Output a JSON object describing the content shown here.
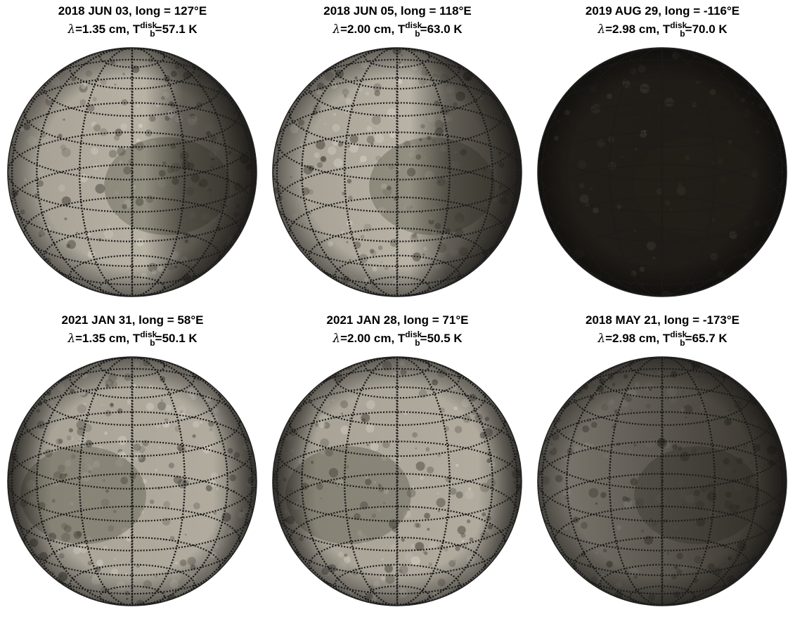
{
  "panels": [
    {
      "date": "2018 JUN 03",
      "long_text": "long = 127°E",
      "wavelength": "=1.35 cm",
      "tb_value": "=57.1 K",
      "brightness": 0.8,
      "dark_side": "right"
    },
    {
      "date": "2018 JUN 05",
      "long_text": "long = 118°E",
      "wavelength": "=2.00 cm",
      "tb_value": "=63.0 K",
      "brightness": 0.78,
      "dark_side": "right"
    },
    {
      "date": "2019 AUG 29",
      "long_text": "long = -116°E",
      "wavelength": "=2.98 cm",
      "tb_value": "=70.0 K",
      "brightness": 0.18,
      "dark_side": "all"
    },
    {
      "date": "2021 JAN 31",
      "long_text": "long = 58°E",
      "wavelength": "=1.35 cm",
      "tb_value": "=50.1 K",
      "brightness": 0.82,
      "dark_side": "edges"
    },
    {
      "date": "2021 JAN 28",
      "long_text": "long = 71°E",
      "wavelength": "=2.00 cm",
      "tb_value": "=50.5 K",
      "brightness": 0.8,
      "dark_side": "edges"
    },
    {
      "date": "2018 MAY 21",
      "long_text": "long = -173°E",
      "wavelength": "=2.98 cm",
      "tb_value": "=65.7 K",
      "brightness": 0.45,
      "dark_side": "lower-right"
    }
  ],
  "symbols": {
    "lambda": "λ",
    "T": "T",
    "disk": "disk",
    "b": "b",
    "sep": ", "
  },
  "colors": {
    "bright_surface": "#b9b3a6",
    "dark_surface": "#2e2a25",
    "grid": "#1a1a1a",
    "limb": "#222222"
  }
}
